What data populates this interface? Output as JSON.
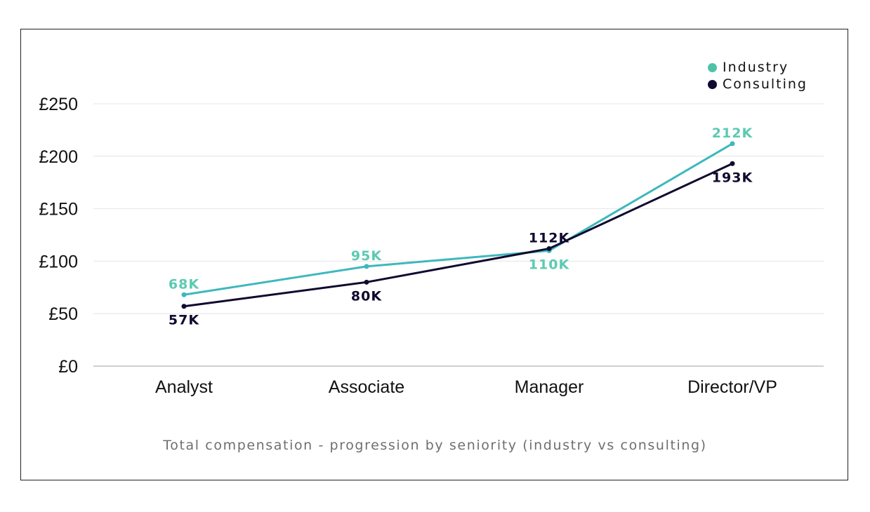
{
  "chart_data": {
    "type": "line",
    "categories": [
      "Analyst",
      "Associate",
      "Manager",
      "Director/VP"
    ],
    "series": [
      {
        "name": "Industry",
        "values": [
          68,
          95,
          110,
          212
        ],
        "labels": [
          "68K",
          "95K",
          "110K",
          "212K"
        ],
        "color": "#3eb8bd",
        "label_color": "#5ccab1",
        "label_position": [
          "above",
          "above",
          "below",
          "above"
        ]
      },
      {
        "name": "Consulting",
        "values": [
          57,
          80,
          112,
          193
        ],
        "labels": [
          "57K",
          "80K",
          "112K",
          "193K"
        ],
        "color": "#0f0a2e",
        "label_color": "#0f0a2e",
        "label_position": [
          "below",
          "below",
          "above",
          "below"
        ]
      }
    ],
    "y_ticks": [
      "£0",
      "£50",
      "£100",
      "£150",
      "£200",
      "£250"
    ],
    "ylim": [
      0,
      250
    ],
    "grid": true,
    "legend_position": "top-right",
    "caption": "Total compensation - progression by seniority (industry vs consulting)"
  }
}
